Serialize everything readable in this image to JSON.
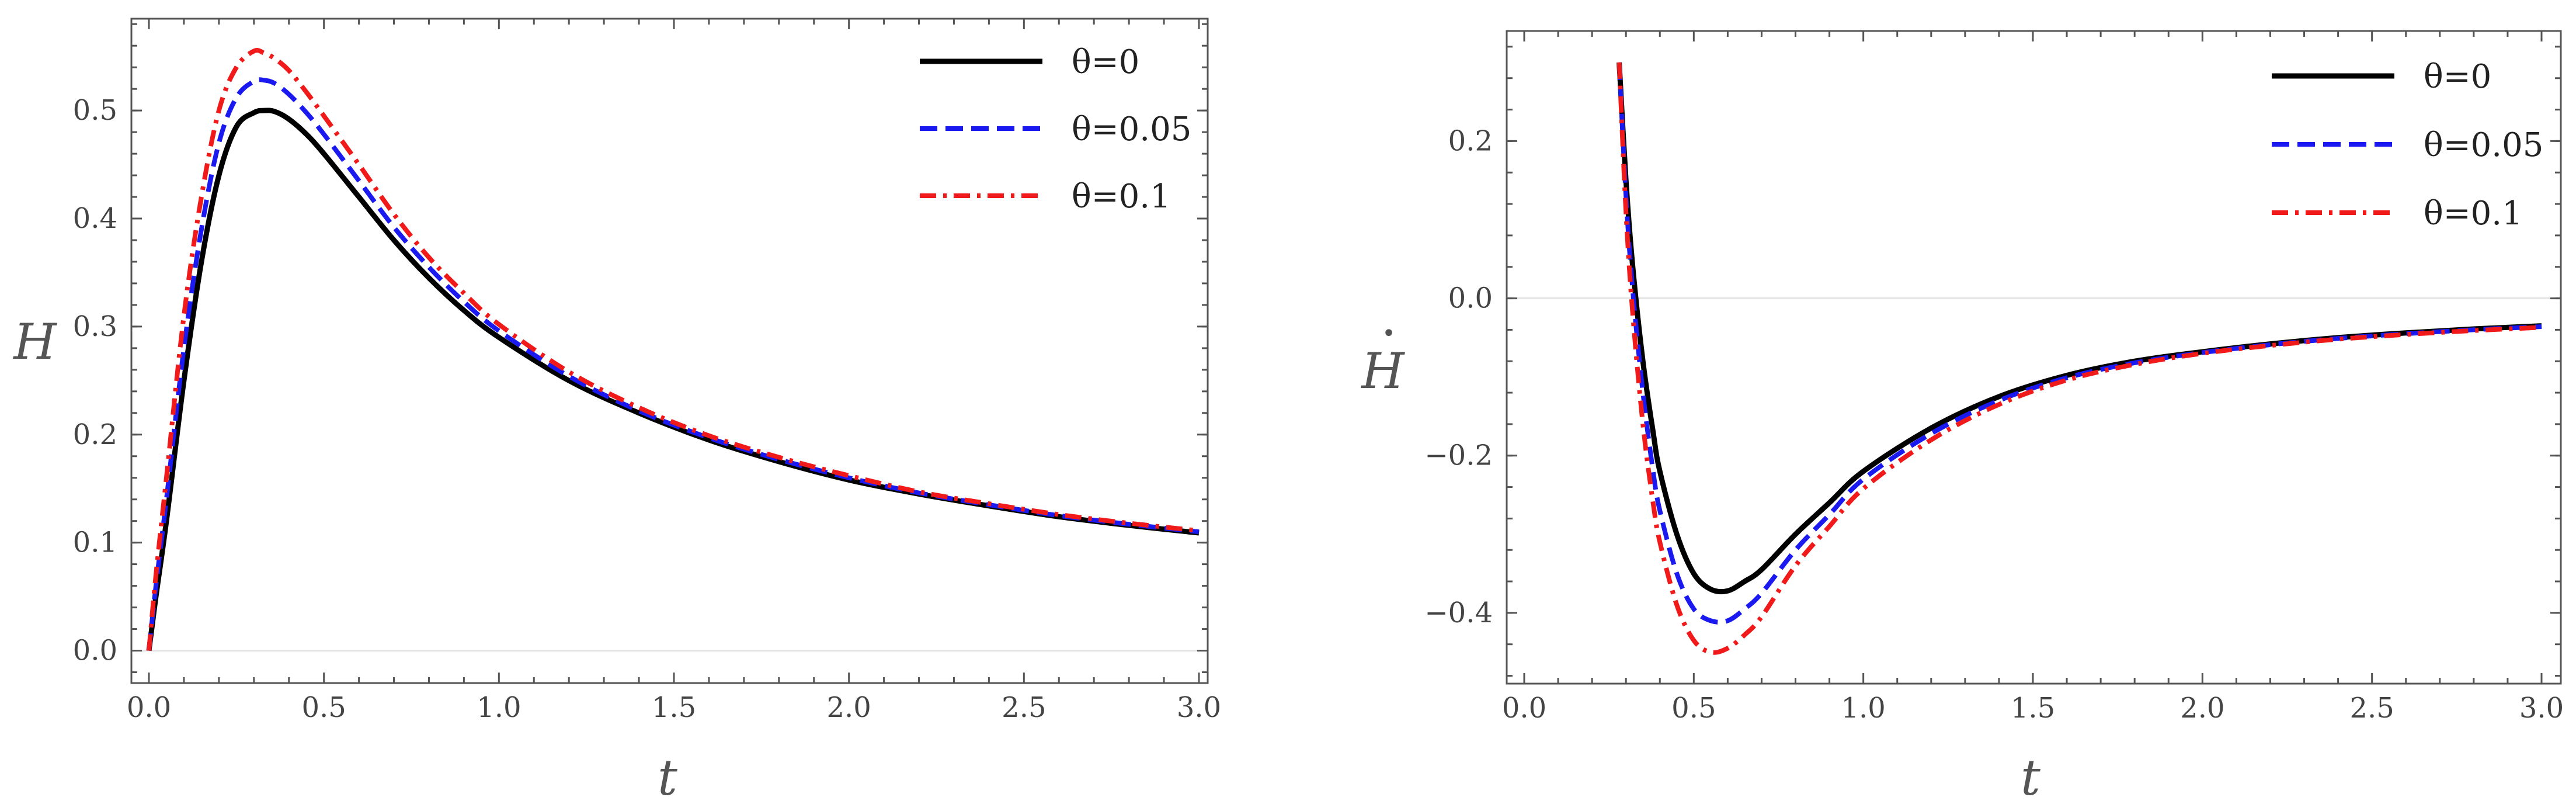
{
  "chart_data": [
    {
      "type": "line",
      "title": "",
      "xlabel": "t",
      "ylabel": "H",
      "xlim": [
        0,
        3.0
      ],
      "ylim": [
        -0.03,
        0.585
      ],
      "xticks": [
        "0.0",
        "0.5",
        "1.0",
        "1.5",
        "2.0",
        "2.5",
        "3.0"
      ],
      "yticks": [
        "0.0",
        "0.1",
        "0.2",
        "0.3",
        "0.4",
        "0.5"
      ],
      "legend_position": "top-right",
      "x": [
        0,
        0.02,
        0.05,
        0.1,
        0.15,
        0.2,
        0.25,
        0.3,
        0.33,
        0.36,
        0.4,
        0.45,
        0.5,
        0.6,
        0.7,
        0.8,
        0.9,
        1.0,
        1.2,
        1.4,
        1.6,
        1.8,
        2.0,
        2.2,
        2.4,
        2.6,
        2.8,
        3.0
      ],
      "series": [
        {
          "name": "θ=0",
          "color": "#000000",
          "dash": "solid",
          "values": [
            0,
            0.05,
            0.12,
            0.25,
            0.36,
            0.44,
            0.485,
            0.498,
            0.5,
            0.499,
            0.492,
            0.478,
            0.46,
            0.42,
            0.38,
            0.345,
            0.315,
            0.29,
            0.25,
            0.22,
            0.195,
            0.175,
            0.158,
            0.145,
            0.134,
            0.124,
            0.116,
            0.109
          ]
        },
        {
          "name": "θ=0.05",
          "color": "#1a1af0",
          "dash": "dashed",
          "values": [
            0,
            0.06,
            0.14,
            0.28,
            0.39,
            0.47,
            0.512,
            0.527,
            0.528,
            0.525,
            0.515,
            0.498,
            0.478,
            0.435,
            0.392,
            0.355,
            0.323,
            0.296,
            0.254,
            0.222,
            0.197,
            0.177,
            0.16,
            0.146,
            0.135,
            0.125,
            0.117,
            0.11
          ]
        },
        {
          "name": "θ=0.1",
          "color": "#f01a1a",
          "dash": "dash-dot",
          "values": [
            0,
            0.07,
            0.16,
            0.31,
            0.42,
            0.5,
            0.54,
            0.555,
            0.553,
            0.548,
            0.537,
            0.517,
            0.495,
            0.45,
            0.404,
            0.364,
            0.331,
            0.302,
            0.258,
            0.225,
            0.199,
            0.179,
            0.162,
            0.147,
            0.136,
            0.126,
            0.118,
            0.111
          ]
        }
      ]
    },
    {
      "type": "line",
      "title": "",
      "xlabel": "t",
      "ylabel": "H",
      "ylabel_accent": "•",
      "xlim": [
        0,
        3.0
      ],
      "ylim": [
        -0.49,
        0.34
      ],
      "xticks": [
        "0.0",
        "0.5",
        "1.0",
        "1.5",
        "2.0",
        "2.5",
        "3.0"
      ],
      "yticks": [
        "0.2",
        "0.0",
        "−0.2",
        "−0.4"
      ],
      "ytick_values": [
        0.2,
        0.0,
        -0.2,
        -0.4
      ],
      "legend_position": "top-right",
      "x": [
        0.28,
        0.3,
        0.32,
        0.35,
        0.38,
        0.4,
        0.45,
        0.5,
        0.55,
        0.6,
        0.65,
        0.7,
        0.8,
        0.9,
        1.0,
        1.2,
        1.4,
        1.6,
        1.8,
        2.0,
        2.2,
        2.4,
        2.6,
        2.8,
        3.0
      ],
      "series": [
        {
          "name": "θ=0",
          "color": "#000000",
          "dash": "solid",
          "values": [
            0.3,
            0.15,
            0.04,
            -0.08,
            -0.17,
            -0.22,
            -0.3,
            -0.35,
            -0.37,
            -0.372,
            -0.36,
            -0.345,
            -0.3,
            -0.26,
            -0.22,
            -0.165,
            -0.125,
            -0.098,
            -0.08,
            -0.068,
            -0.058,
            -0.05,
            -0.044,
            -0.039,
            -0.035
          ]
        },
        {
          "name": "θ=0.05",
          "color": "#1a1af0",
          "dash": "dashed",
          "values": [
            0.3,
            0.13,
            0.01,
            -0.12,
            -0.22,
            -0.27,
            -0.35,
            -0.395,
            -0.41,
            -0.41,
            -0.395,
            -0.375,
            -0.32,
            -0.275,
            -0.23,
            -0.172,
            -0.13,
            -0.101,
            -0.082,
            -0.069,
            -0.059,
            -0.051,
            -0.045,
            -0.04,
            -0.036
          ]
        },
        {
          "name": "θ=0.1",
          "color": "#f01a1a",
          "dash": "dash-dot",
          "values": [
            0.3,
            0.11,
            -0.02,
            -0.16,
            -0.26,
            -0.31,
            -0.39,
            -0.435,
            -0.45,
            -0.445,
            -0.428,
            -0.405,
            -0.34,
            -0.29,
            -0.242,
            -0.18,
            -0.135,
            -0.104,
            -0.084,
            -0.07,
            -0.06,
            -0.052,
            -0.046,
            -0.041,
            -0.037
          ]
        }
      ]
    }
  ]
}
